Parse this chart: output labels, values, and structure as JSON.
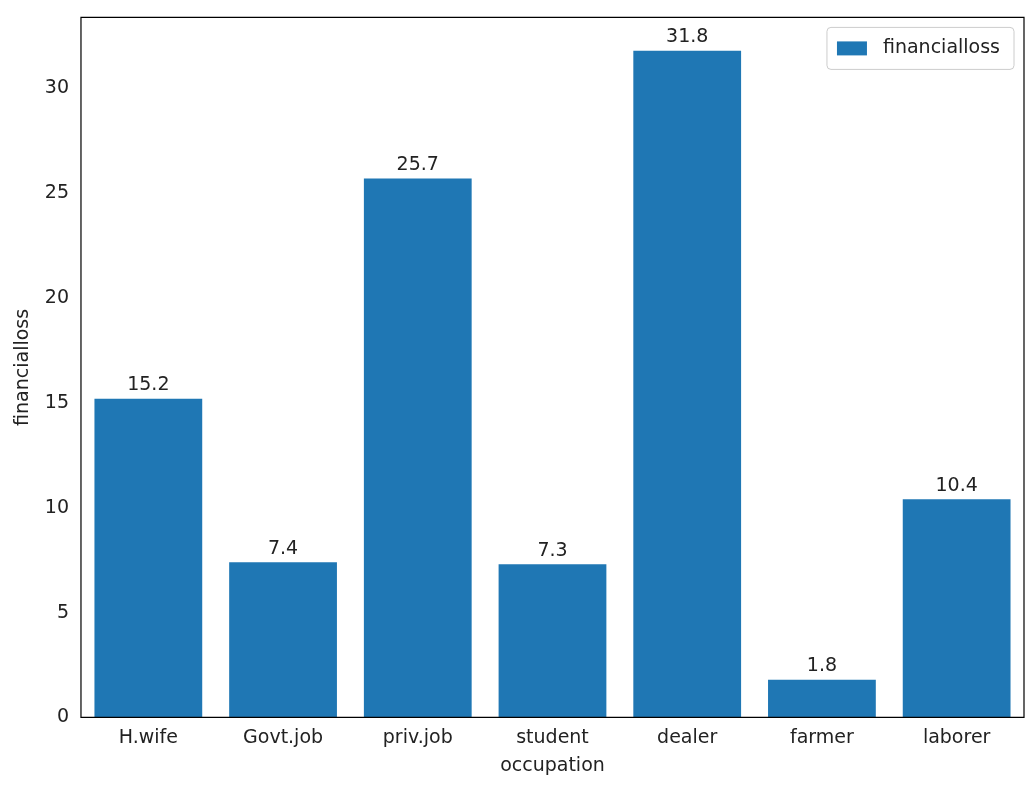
{
  "chart_data": {
    "type": "bar",
    "xlabel": "occupation",
    "ylabel": "financialloss",
    "categories": [
      "H.wife",
      "Govt.job",
      "priv.job",
      "student",
      "dealer",
      "farmer",
      "laborer"
    ],
    "series": [
      {
        "name": "financialloss",
        "color": "#1f77b4",
        "values": [
          15.2,
          7.4,
          25.7,
          7.3,
          31.8,
          1.8,
          10.4
        ]
      }
    ],
    "ylim": [
      0,
      33.39
    ],
    "yticks": [
      0,
      5,
      10,
      15,
      20,
      25,
      30
    ],
    "data_labels": true,
    "legend": "top right",
    "grid": false
  }
}
